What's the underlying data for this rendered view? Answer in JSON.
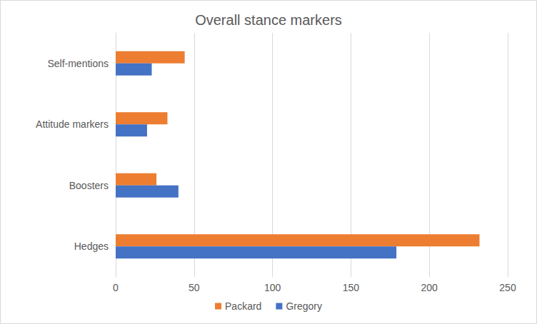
{
  "chart_data": {
    "type": "bar",
    "title": "Overall stance markers",
    "orientation": "horizontal",
    "categories": [
      "Hedges",
      "Boosters",
      "Attitude markers",
      "Self-mentions"
    ],
    "series": [
      {
        "name": "Packard",
        "color": "#ed7d31",
        "values": [
          232,
          26,
          33,
          44
        ]
      },
      {
        "name": "Gregory",
        "color": "#4472c4",
        "values": [
          179,
          40,
          20,
          23
        ]
      }
    ],
    "xlim": [
      0,
      250
    ],
    "xticks": [
      0,
      50,
      100,
      150,
      200,
      250
    ],
    "grid": true,
    "legend": "bottom"
  }
}
